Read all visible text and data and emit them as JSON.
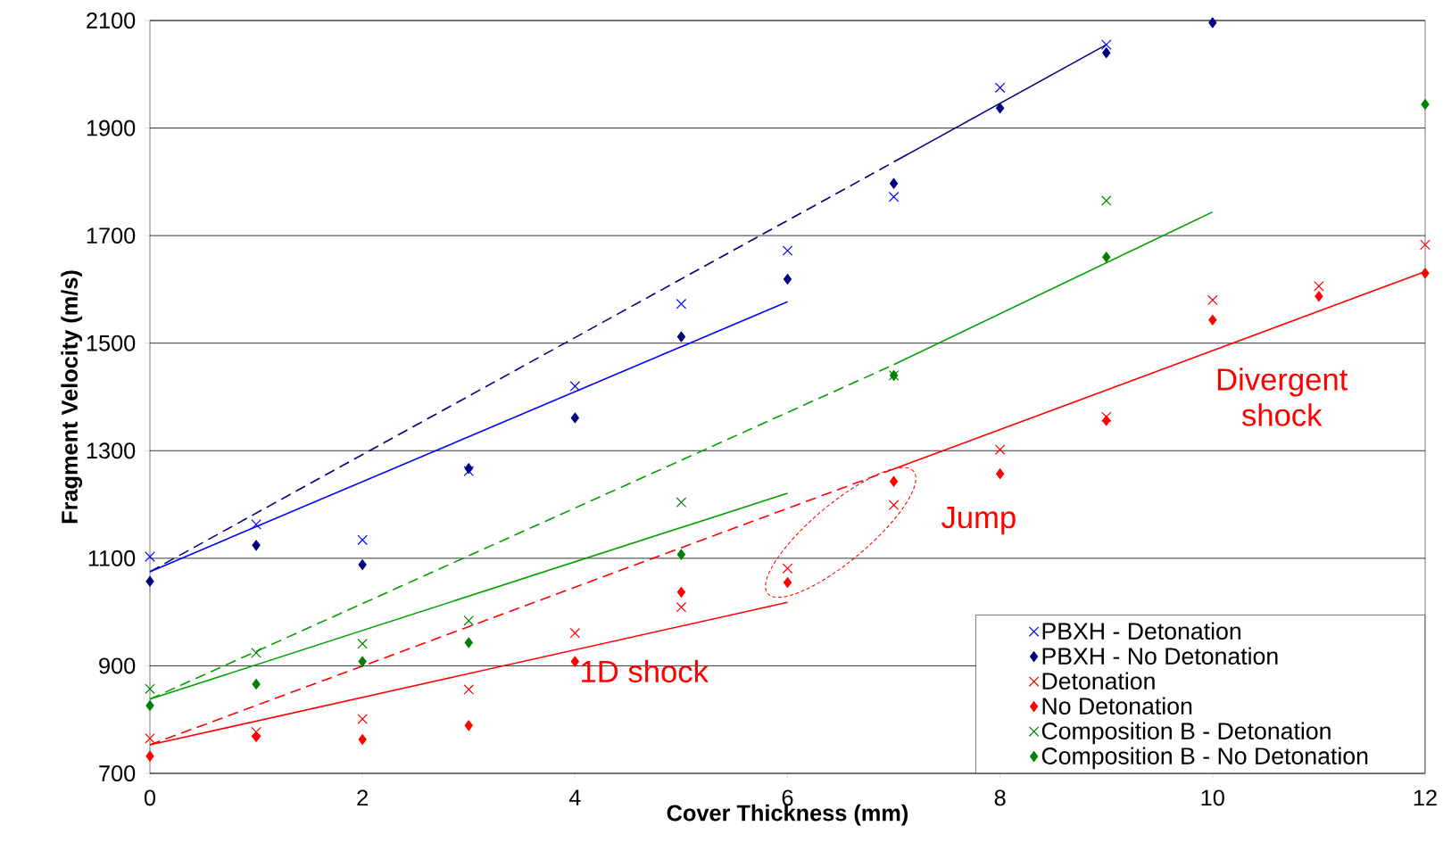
{
  "chart_data": {
    "type": "scatter",
    "xlabel": "Cover Thickness (mm)",
    "ylabel": "Fragment Velocity (m/s)",
    "xlim": [
      0,
      12
    ],
    "xticks": [
      0,
      2,
      4,
      6,
      8,
      10,
      12
    ],
    "ylim": [
      700,
      2100
    ],
    "yticks": [
      700,
      900,
      1100,
      1300,
      1500,
      1700,
      1900,
      2100
    ],
    "grid": "y",
    "legend": "bottom right",
    "annotations": [
      "Divergent shock",
      "Jump",
      "1D shock"
    ],
    "series": [
      {
        "name": "PBXH - Detonation",
        "marker": "cross",
        "color": "#0000ff",
        "x": [
          0,
          1,
          2,
          3,
          4,
          5,
          6,
          7,
          8,
          9
        ],
        "values": [
          1103,
          1163,
          1134,
          1262,
          1420,
          1573,
          1672,
          1772,
          1975,
          2055
        ]
      },
      {
        "name": "PBXH - No Detonation",
        "marker": "diamond",
        "color": "#000080",
        "x": [
          0,
          1,
          2,
          3,
          4,
          5,
          6,
          7,
          8,
          9,
          10
        ],
        "values": [
          1057,
          1124,
          1088,
          1267,
          1361,
          1512,
          1619,
          1797,
          1937,
          2040,
          2096
        ]
      },
      {
        "name": "Detonation",
        "marker": "cross",
        "color": "#ff0000",
        "x": [
          0,
          1,
          2,
          3,
          4,
          5,
          6,
          7,
          8,
          9,
          10,
          11,
          12
        ],
        "values": [
          765,
          777,
          801,
          856,
          961,
          1009,
          1081,
          1199,
          1302,
          1363,
          1580,
          1606,
          1683
        ]
      },
      {
        "name": "No Detonation",
        "marker": "diamond",
        "color": "#ff0000",
        "x": [
          0,
          1,
          2,
          3,
          4,
          5,
          6,
          7,
          8,
          9,
          10,
          11,
          12
        ],
        "values": [
          732,
          768,
          763,
          789,
          908,
          1037,
          1055,
          1243,
          1257,
          1356,
          1543,
          1587,
          1630
        ]
      },
      {
        "name": "Composition B - Detonation",
        "marker": "cross",
        "color": "#008000",
        "x": [
          0,
          1,
          2,
          3,
          5,
          7,
          9
        ],
        "values": [
          857,
          924,
          941,
          984,
          1204,
          1440,
          1765
        ]
      },
      {
        "name": "Composition B - No Detonation",
        "marker": "diamond",
        "color": "#008000",
        "x": [
          0,
          1,
          2,
          3,
          5,
          7,
          9,
          12
        ],
        "values": [
          826,
          866,
          908,
          943,
          1107,
          1440,
          1660,
          1944
        ]
      },
      {
        "type": "line",
        "line_style": "dashed",
        "color": "#000080",
        "x": [
          0,
          7
        ],
        "values": [
          1075,
          1837
        ]
      },
      {
        "type": "line",
        "line_style": "solid",
        "color": "#000080",
        "x": [
          7,
          9
        ],
        "values": [
          1837,
          2055
        ]
      },
      {
        "type": "line",
        "line_style": "solid",
        "color": "#0000ff",
        "x": [
          0,
          6
        ],
        "values": [
          1075,
          1577
        ]
      },
      {
        "type": "line",
        "line_style": "dashed",
        "color": "#00a000",
        "x": [
          0,
          7
        ],
        "values": [
          838,
          1460
        ]
      },
      {
        "type": "line",
        "line_style": "solid",
        "color": "#00a000",
        "x": [
          7,
          10
        ],
        "values": [
          1460,
          1744
        ]
      },
      {
        "type": "line",
        "line_style": "solid",
        "color": "#00a000",
        "x": [
          0,
          6
        ],
        "values": [
          838,
          1221
        ]
      },
      {
        "type": "line",
        "line_style": "dashed",
        "color": "#ff0000",
        "x": [
          0,
          7
        ],
        "values": [
          753,
          1266
        ]
      },
      {
        "type": "line",
        "line_style": "solid",
        "color": "#ff0000",
        "x": [
          7,
          12
        ],
        "values": [
          1266,
          1633
        ]
      },
      {
        "type": "line",
        "line_style": "solid",
        "color": "#ff0000",
        "x": [
          0,
          6
        ],
        "values": [
          753,
          1018
        ]
      }
    ]
  }
}
